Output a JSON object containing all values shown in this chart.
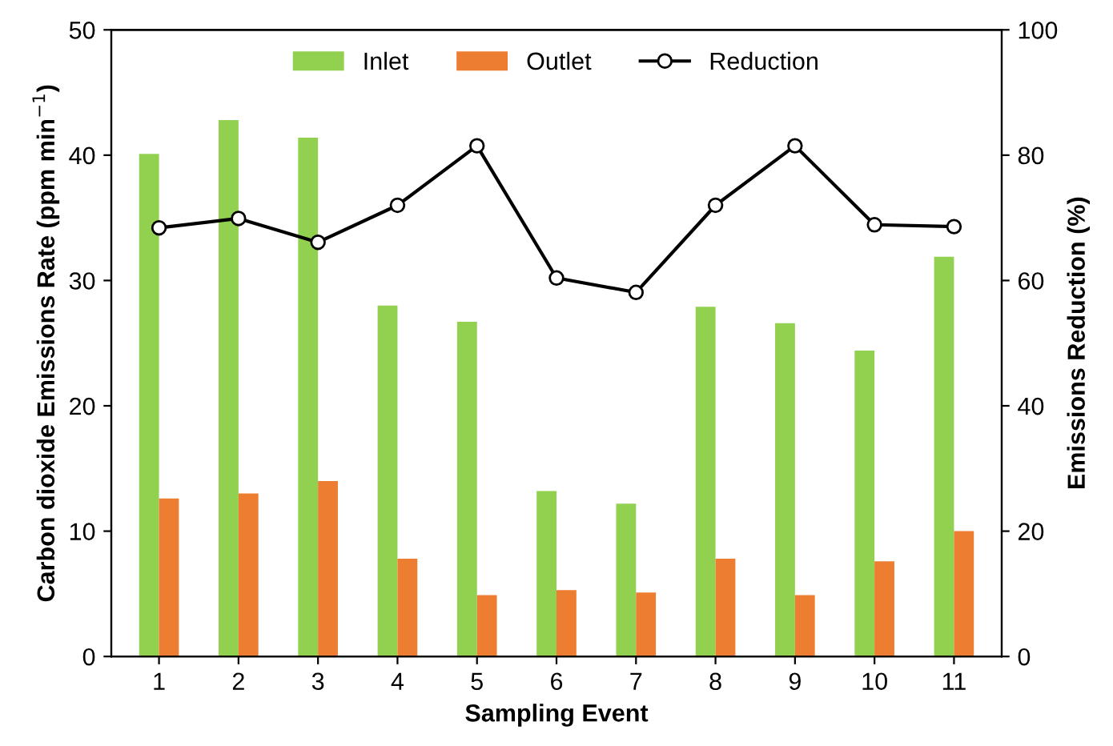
{
  "chart_data": {
    "type": "bar",
    "xlabel": "Sampling Event",
    "ylabel": "Carbon dioxide Emissions Rate (ppm min$^{−1}$)",
    "y2label": "Emissions Reduction (%)",
    "categories": [
      "1",
      "2",
      "3",
      "4",
      "5",
      "6",
      "7",
      "8",
      "9",
      "10",
      "11"
    ],
    "series": [
      {
        "name": "Inlet",
        "color": "#92d050",
        "values": [
          40.1,
          42.8,
          41.4,
          28.0,
          26.7,
          13.2,
          12.2,
          27.9,
          26.6,
          24.4,
          31.9
        ]
      },
      {
        "name": "Outlet",
        "color": "#ed7d31",
        "values": [
          12.6,
          13.0,
          14.0,
          7.8,
          4.9,
          5.3,
          5.1,
          7.8,
          4.9,
          7.6,
          10.0
        ]
      },
      {
        "name": "Reduction",
        "type": "line",
        "axis": "y2",
        "color": "#000000",
        "marker": "circle",
        "line_style": "solid",
        "values": [
          68.4,
          69.9,
          66.1,
          72.0,
          81.5,
          60.4,
          58.1,
          72.0,
          81.5,
          68.9,
          68.6
        ]
      }
    ],
    "ylim": [
      0,
      50
    ],
    "yticks": [
      0,
      10,
      20,
      30,
      40,
      50
    ],
    "y2lim": [
      0,
      100
    ],
    "y2ticks": [
      0,
      20,
      40,
      60,
      80,
      100
    ],
    "grid": false,
    "legend": "top"
  }
}
